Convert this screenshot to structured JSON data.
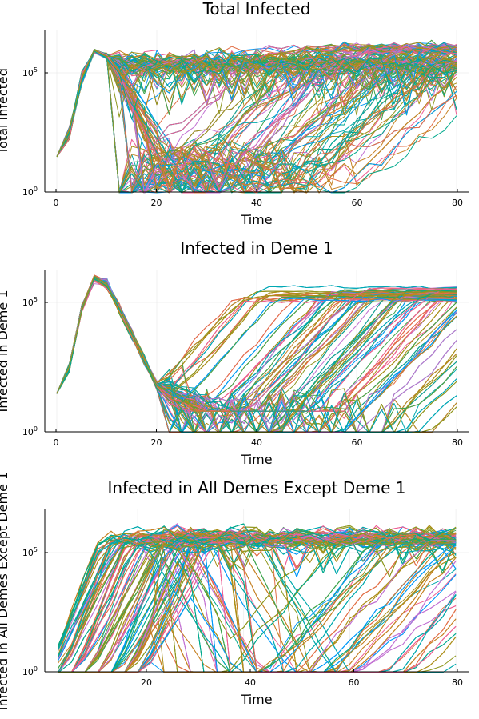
{
  "chart_data": [
    {
      "type": "line",
      "title": "Total Infected",
      "xlabel": "Time",
      "ylabel": "Total Infected",
      "xlim": [
        -2.4,
        82.4
      ],
      "ylim": [
        1,
        3000000
      ],
      "y_scale": "log10",
      "xticks": [
        0,
        20,
        40,
        60,
        80
      ],
      "xtick_labels": [
        "0",
        "20",
        "40",
        "60",
        "80"
      ],
      "yticks": [
        1,
        100000
      ],
      "ytick_labels": [
        "10^0",
        "10^5"
      ],
      "grid": true,
      "legend": "none",
      "series_count": 240,
      "x": [
        0,
        2.5,
        5,
        7.5,
        10,
        12.5,
        15,
        17.5,
        20,
        22.5,
        25,
        27.5,
        30,
        32.5,
        35,
        37.5,
        40,
        42.5,
        45,
        47.5,
        50,
        52.5,
        55,
        57.5,
        60,
        62.5,
        65,
        67.5,
        70,
        72.5,
        75,
        77.5,
        80
      ],
      "shared_profile": [
        30,
        300,
        60000,
        800000,
        500000
      ],
      "typical_range": {
        "min": 0.3,
        "peak": 3000000,
        "late_band": [
          300,
          2000000
        ]
      }
    },
    {
      "type": "line",
      "title": "Infected in Deme 1",
      "xlabel": "Time",
      "ylabel": "Infected in Deme 1",
      "xlim": [
        -2.4,
        82.4
      ],
      "ylim": [
        1,
        3000000
      ],
      "y_scale": "log10",
      "xticks": [
        0,
        20,
        40,
        60,
        80
      ],
      "xtick_labels": [
        "0",
        "20",
        "40",
        "60",
        "80"
      ],
      "yticks": [
        1,
        100000
      ],
      "ytick_labels": [
        "10^0",
        "10^5"
      ],
      "grid": true,
      "legend": "none",
      "series_count": 240,
      "x": [
        0,
        2.5,
        5,
        7.5,
        10,
        12.5,
        15,
        17.5,
        20,
        22.5,
        25,
        27.5,
        30,
        32.5,
        35,
        37.5,
        40,
        42.5,
        45,
        47.5,
        50,
        52.5,
        55,
        57.5,
        60,
        62.5,
        65,
        67.5,
        70,
        72.5,
        75,
        77.5,
        80
      ],
      "shared_profile": [
        30,
        300,
        60000,
        800000,
        500000,
        60000,
        6000,
        600,
        60
      ],
      "typical_range": {
        "min": 0.3,
        "peak": 1500000,
        "late_band": [
          1,
          1000000
        ]
      }
    },
    {
      "type": "line",
      "title": "Infected in All Demes Except Deme 1",
      "xlabel": "Time",
      "ylabel": "Infected in All Demes Except Deme 1",
      "xlim": [
        2.5,
        82.4
      ],
      "ylim": [
        1,
        3000000
      ],
      "y_scale": "log10",
      "xticks": [
        20,
        40,
        60,
        80
      ],
      "xtick_labels": [
        "20",
        "40",
        "60",
        "80"
      ],
      "yticks": [
        1,
        100000
      ],
      "ytick_labels": [
        "10^0",
        "10^5"
      ],
      "grid": true,
      "legend": "none",
      "series_count": 240,
      "x": [
        5,
        7.5,
        10,
        12.5,
        15,
        17.5,
        20,
        22.5,
        25,
        27.5,
        30,
        32.5,
        35,
        37.5,
        40,
        42.5,
        45,
        47.5,
        50,
        52.5,
        55,
        57.5,
        60,
        62.5,
        65,
        67.5,
        70,
        72.5,
        75,
        77.5,
        80
      ],
      "typical_range": {
        "min": 0.3,
        "peak": 3000000,
        "late_band": [
          1,
          1500000
        ]
      }
    }
  ],
  "palette": [
    "#009af9",
    "#e26f46",
    "#3da44d",
    "#c271d2",
    "#ac8e18",
    "#00a9ad",
    "#ed5e93",
    "#c68225",
    "#00a98d",
    "#8e971e"
  ],
  "axis_color": "#000000",
  "grid_color": "#e6e6e6"
}
